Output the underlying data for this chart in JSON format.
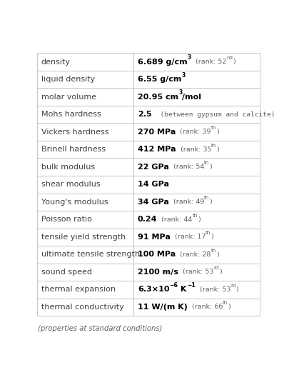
{
  "rows": [
    {
      "label": "density",
      "segments": [
        {
          "text": "6.689 g/cm",
          "bold": true,
          "size": "val",
          "sup": false,
          "color": "val"
        },
        {
          "text": "3",
          "bold": true,
          "size": "sup",
          "sup": true,
          "color": "val"
        },
        {
          "text": "  (rank: 52",
          "bold": false,
          "size": "rank",
          "sup": false,
          "color": "rank"
        },
        {
          "text": "nd",
          "bold": false,
          "size": "rsup",
          "sup": true,
          "color": "rank"
        },
        {
          "text": ")",
          "bold": false,
          "size": "rank",
          "sup": false,
          "color": "rank"
        }
      ]
    },
    {
      "label": "liquid density",
      "segments": [
        {
          "text": "6.55 g/cm",
          "bold": true,
          "size": "val",
          "sup": false,
          "color": "val"
        },
        {
          "text": "3",
          "bold": true,
          "size": "sup",
          "sup": true,
          "color": "val"
        }
      ]
    },
    {
      "label": "molar volume",
      "segments": [
        {
          "text": "20.95 cm",
          "bold": true,
          "size": "val",
          "sup": false,
          "color": "val"
        },
        {
          "text": "3",
          "bold": true,
          "size": "sup",
          "sup": true,
          "color": "val"
        },
        {
          "text": "/mol",
          "bold": true,
          "size": "val",
          "sup": false,
          "color": "val"
        }
      ]
    },
    {
      "label": "Mohs hardness",
      "segments": [
        {
          "text": "2.5",
          "bold": true,
          "size": "val",
          "sup": false,
          "color": "val"
        },
        {
          "text": "  (between gypsum and calcite)",
          "bold": false,
          "size": "rank",
          "sup": false,
          "color": "rank",
          "mono": true
        }
      ]
    },
    {
      "label": "Vickers hardness",
      "segments": [
        {
          "text": "270 MPa",
          "bold": true,
          "size": "val",
          "sup": false,
          "color": "val"
        },
        {
          "text": "  (rank: 39",
          "bold": false,
          "size": "rank",
          "sup": false,
          "color": "rank"
        },
        {
          "text": "th",
          "bold": false,
          "size": "rsup",
          "sup": true,
          "color": "rank"
        },
        {
          "text": ")",
          "bold": false,
          "size": "rank",
          "sup": false,
          "color": "rank"
        }
      ]
    },
    {
      "label": "Brinell hardness",
      "segments": [
        {
          "text": "412 MPa",
          "bold": true,
          "size": "val",
          "sup": false,
          "color": "val"
        },
        {
          "text": "  (rank: 35",
          "bold": false,
          "size": "rank",
          "sup": false,
          "color": "rank"
        },
        {
          "text": "th",
          "bold": false,
          "size": "rsup",
          "sup": true,
          "color": "rank"
        },
        {
          "text": ")",
          "bold": false,
          "size": "rank",
          "sup": false,
          "color": "rank"
        }
      ]
    },
    {
      "label": "bulk modulus",
      "segments": [
        {
          "text": "22 GPa",
          "bold": true,
          "size": "val",
          "sup": false,
          "color": "val"
        },
        {
          "text": "  (rank: 54",
          "bold": false,
          "size": "rank",
          "sup": false,
          "color": "rank"
        },
        {
          "text": "th",
          "bold": false,
          "size": "rsup",
          "sup": true,
          "color": "rank"
        },
        {
          "text": ")",
          "bold": false,
          "size": "rank",
          "sup": false,
          "color": "rank"
        }
      ]
    },
    {
      "label": "shear modulus",
      "segments": [
        {
          "text": "14 GPa",
          "bold": true,
          "size": "val",
          "sup": false,
          "color": "val"
        }
      ]
    },
    {
      "label": "Young's modulus",
      "segments": [
        {
          "text": "34 GPa",
          "bold": true,
          "size": "val",
          "sup": false,
          "color": "val"
        },
        {
          "text": "  (rank: 49",
          "bold": false,
          "size": "rank",
          "sup": false,
          "color": "rank"
        },
        {
          "text": "th",
          "bold": false,
          "size": "rsup",
          "sup": true,
          "color": "rank"
        },
        {
          "text": ")",
          "bold": false,
          "size": "rank",
          "sup": false,
          "color": "rank"
        }
      ]
    },
    {
      "label": "Poisson ratio",
      "segments": [
        {
          "text": "0.24",
          "bold": true,
          "size": "val",
          "sup": false,
          "color": "val"
        },
        {
          "text": "  (rank: 44",
          "bold": false,
          "size": "rank",
          "sup": false,
          "color": "rank"
        },
        {
          "text": "th",
          "bold": false,
          "size": "rsup",
          "sup": true,
          "color": "rank"
        },
        {
          "text": ")",
          "bold": false,
          "size": "rank",
          "sup": false,
          "color": "rank"
        }
      ]
    },
    {
      "label": "tensile yield strength",
      "segments": [
        {
          "text": "91 MPa",
          "bold": true,
          "size": "val",
          "sup": false,
          "color": "val"
        },
        {
          "text": "  (rank: 17",
          "bold": false,
          "size": "rank",
          "sup": false,
          "color": "rank"
        },
        {
          "text": "th",
          "bold": false,
          "size": "rsup",
          "sup": true,
          "color": "rank"
        },
        {
          "text": ")",
          "bold": false,
          "size": "rank",
          "sup": false,
          "color": "rank"
        }
      ]
    },
    {
      "label": "ultimate tensile strength",
      "segments": [
        {
          "text": "100 MPa",
          "bold": true,
          "size": "val",
          "sup": false,
          "color": "val"
        },
        {
          "text": "  (rank: 28",
          "bold": false,
          "size": "rank",
          "sup": false,
          "color": "rank"
        },
        {
          "text": "th",
          "bold": false,
          "size": "rsup",
          "sup": true,
          "color": "rank"
        },
        {
          "text": ")",
          "bold": false,
          "size": "rank",
          "sup": false,
          "color": "rank"
        }
      ]
    },
    {
      "label": "sound speed",
      "segments": [
        {
          "text": "2100 m/s",
          "bold": true,
          "size": "val",
          "sup": false,
          "color": "val"
        },
        {
          "text": "  (rank: 53",
          "bold": false,
          "size": "rank",
          "sup": false,
          "color": "rank"
        },
        {
          "text": "rd",
          "bold": false,
          "size": "rsup",
          "sup": true,
          "color": "rank"
        },
        {
          "text": ")",
          "bold": false,
          "size": "rank",
          "sup": false,
          "color": "rank"
        }
      ]
    },
    {
      "label": "thermal expansion",
      "segments": [
        {
          "text": "6.3×10",
          "bold": true,
          "size": "val",
          "sup": false,
          "color": "val"
        },
        {
          "text": "−6",
          "bold": true,
          "size": "sup",
          "sup": true,
          "color": "val"
        },
        {
          "text": " K",
          "bold": true,
          "size": "val",
          "sup": false,
          "color": "val"
        },
        {
          "text": "−1",
          "bold": true,
          "size": "sup",
          "sup": true,
          "color": "val"
        },
        {
          "text": "  (rank: 53",
          "bold": false,
          "size": "rank",
          "sup": false,
          "color": "rank"
        },
        {
          "text": "rd",
          "bold": false,
          "size": "rsup",
          "sup": true,
          "color": "rank"
        },
        {
          "text": ")",
          "bold": false,
          "size": "rank",
          "sup": false,
          "color": "rank"
        }
      ]
    },
    {
      "label": "thermal conductivity",
      "segments": [
        {
          "text": "11 W/(m K)",
          "bold": true,
          "size": "val",
          "sup": false,
          "color": "val"
        },
        {
          "text": "  (rank: 66",
          "bold": false,
          "size": "rank",
          "sup": false,
          "color": "rank"
        },
        {
          "text": "th",
          "bold": false,
          "size": "rsup",
          "sup": true,
          "color": "rank"
        },
        {
          "text": ")",
          "bold": false,
          "size": "rank",
          "sup": false,
          "color": "rank"
        }
      ]
    }
  ],
  "footer": "(properties at standard conditions)",
  "col_split": 0.432,
  "bg_color": "#ffffff",
  "border_color": "#bbbbbb",
  "label_color": "#404040",
  "val_color": "#000000",
  "rank_color": "#606060",
  "font_size_val": 8.0,
  "font_size_sup": 5.6,
  "font_size_rank": 6.8,
  "font_size_rsup": 5.1,
  "font_size_label": 8.0,
  "font_size_footer": 7.2
}
